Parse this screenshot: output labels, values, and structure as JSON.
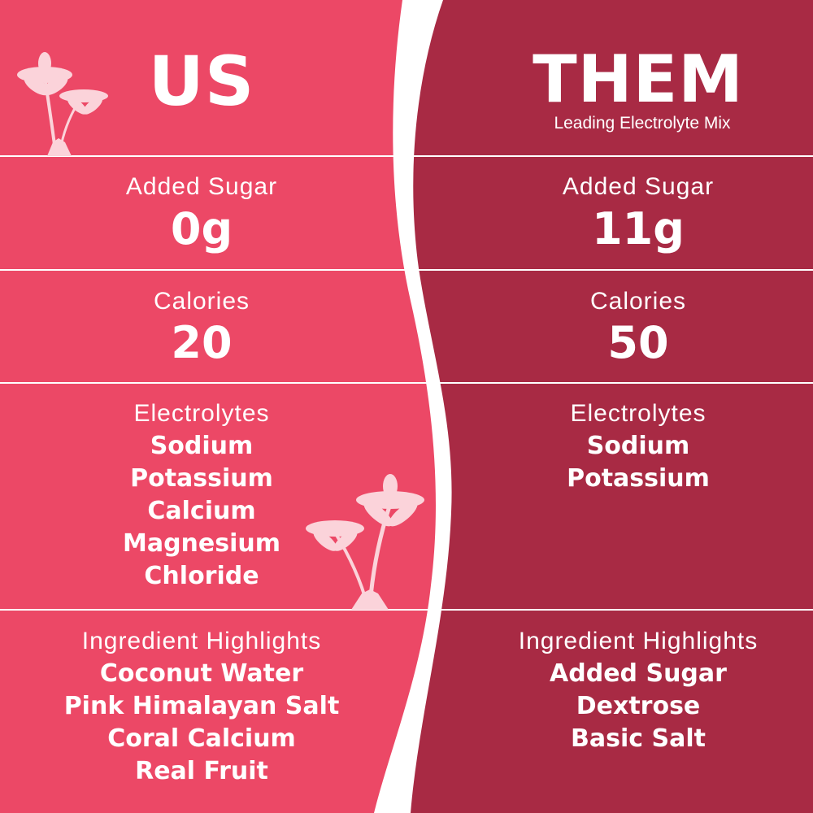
{
  "colors": {
    "us": "#EC4866",
    "them": "#A82A44",
    "divider": "#FFFFFF",
    "palm": "#FBD3DA"
  },
  "us": {
    "title": "US",
    "sugar_label": "Added Sugar",
    "sugar_value": "0g",
    "calories_label": "Calories",
    "calories_value": "20",
    "electrolytes_label": "Electrolytes",
    "electrolytes": [
      "Sodium",
      "Potassium",
      "Calcium",
      "Magnesium",
      "Chloride"
    ],
    "ingredients_label": "Ingredient Highlights",
    "ingredients": [
      "Coconut Water",
      "Pink Himalayan Salt",
      "Coral Calcium",
      "Real Fruit"
    ]
  },
  "them": {
    "title": "THEM",
    "subtitle": "Leading Electrolyte Mix",
    "sugar_label": "Added Sugar",
    "sugar_value": "11g",
    "calories_label": "Calories",
    "calories_value": "50",
    "electrolytes_label": "Electrolytes",
    "electrolytes": [
      "Sodium",
      "Potassium"
    ],
    "ingredients_label": "Ingredient Highlights",
    "ingredients": [
      "Added Sugar",
      "Dextrose",
      "Basic Salt"
    ]
  },
  "icons": [
    "palm-tree-icon"
  ]
}
